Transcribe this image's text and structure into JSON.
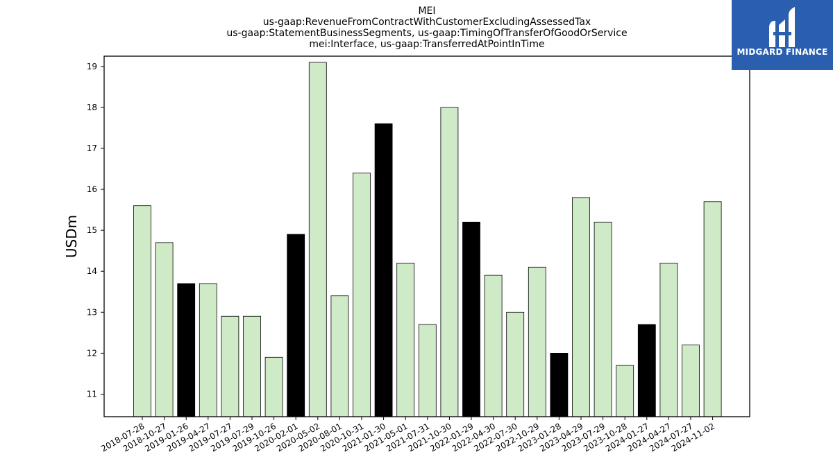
{
  "chart_data": {
    "type": "bar",
    "title": "MEI",
    "subtitle_lines": [
      "us-gaap:RevenueFromContractWithCustomerExcludingAssessedTax",
      "us-gaap:StatementBusinessSegments, us-gaap:TimingOfTransferOfGoodOrService",
      "mei:Interface, us-gaap:TransferredAtPointInTime"
    ],
    "xlabel": "",
    "ylabel": "USDm",
    "ylim": [
      10.45,
      19.25
    ],
    "yticks": [
      11,
      12,
      13,
      14,
      15,
      16,
      17,
      18,
      19
    ],
    "grid": false,
    "categories": [
      "2018-07-28",
      "2018-10-27",
      "2019-01-26",
      "2019-04-27",
      "2019-07-27",
      "2019-07-29",
      "2019-10-26",
      "2020-02-01",
      "2020-05-02",
      "2020-08-01",
      "2020-10-31",
      "2021-01-30",
      "2021-05-01",
      "2021-07-31",
      "2021-10-30",
      "2022-01-29",
      "2022-04-30",
      "2022-07-30",
      "2022-10-29",
      "2023-01-28",
      "2023-04-29",
      "2023-07-29",
      "2023-10-28",
      "2024-01-27",
      "2024-04-27",
      "2024-07-27",
      "2024-11-02"
    ],
    "values": [
      15.6,
      14.7,
      13.7,
      13.7,
      12.9,
      12.9,
      11.9,
      14.9,
      19.1,
      13.4,
      16.4,
      17.6,
      14.2,
      12.7,
      18.0,
      15.2,
      13.9,
      13.0,
      14.1,
      12.0,
      15.8,
      15.2,
      11.7,
      12.7,
      14.2,
      12.2,
      15.7
    ],
    "highlight": [
      false,
      false,
      true,
      false,
      false,
      false,
      false,
      true,
      false,
      false,
      false,
      true,
      false,
      false,
      false,
      true,
      false,
      false,
      false,
      true,
      false,
      false,
      false,
      true,
      false,
      false,
      false
    ],
    "colors": {
      "bar": "#cfeac6",
      "highlight": "#000000",
      "edge": "#000000"
    }
  },
  "logo": {
    "text": "MIDGARD FINANCE",
    "background": "#2a5fb0"
  }
}
